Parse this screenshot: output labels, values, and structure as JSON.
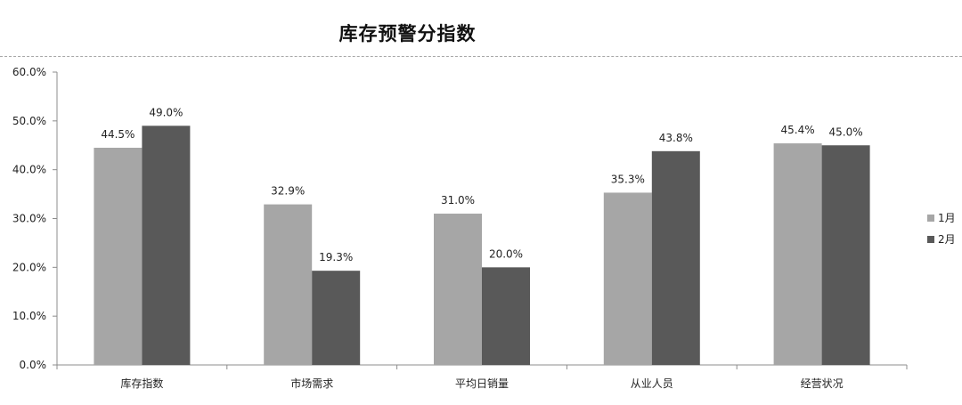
{
  "chart_data": {
    "type": "bar",
    "title": "库存预警分指数",
    "categories": [
      "库存指数",
      "市场需求",
      "平均日销量",
      "从业人员",
      "经营状况"
    ],
    "series": [
      {
        "name": "1月",
        "values": [
          44.5,
          32.9,
          31.0,
          35.3,
          45.4
        ],
        "labels": [
          "44.5%",
          "32.9%",
          "31.0%",
          "35.3%",
          "45.4%"
        ],
        "color": "#a6a6a6"
      },
      {
        "name": "2月",
        "values": [
          49.0,
          19.3,
          20.0,
          43.8,
          45.0
        ],
        "labels": [
          "49.0%",
          "19.3%",
          "20.0%",
          "43.8%",
          "45.0%"
        ],
        "color": "#595959"
      }
    ],
    "ylim": [
      0,
      60
    ],
    "yticks": [
      0,
      10,
      20,
      30,
      40,
      50,
      60
    ],
    "ytick_labels": [
      "0.0%",
      "10.0%",
      "20.0%",
      "30.0%",
      "40.0%",
      "50.0%",
      "60.0%"
    ],
    "xlabel": "",
    "ylabel": "",
    "legend_position": "right",
    "grid": false
  }
}
